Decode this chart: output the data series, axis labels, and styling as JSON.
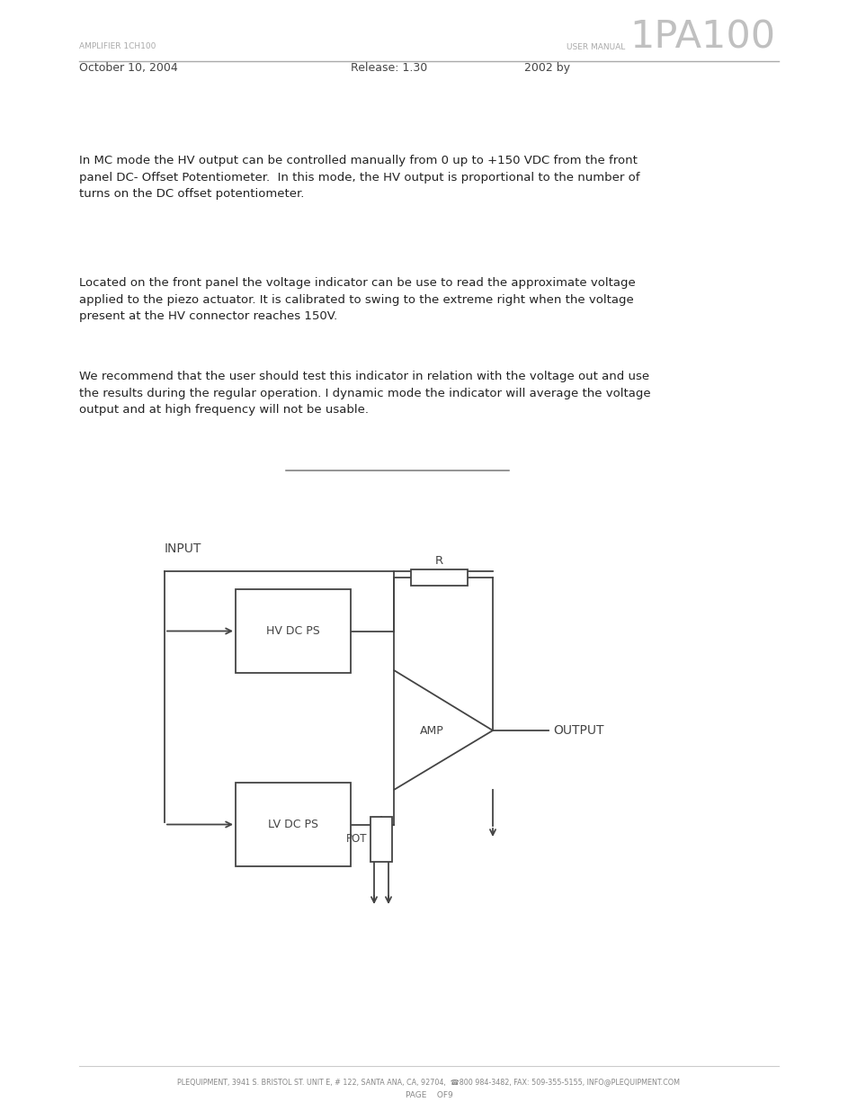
{
  "bg_color": "#ffffff",
  "header_left": "AMPLIFIER 1CH100",
  "header_right_pre": "USER MANUAL",
  "header_right_large": "1PA100",
  "header_date": "October 10, 2004",
  "header_release": "Release: 1.30",
  "header_year": "2002 by",
  "para1": "In MC mode the HV output can be controlled manually from 0 up to +150 VDC from the front\npanel DC- Offset Potentiometer.  In this mode, the HV output is proportional to the number of\nturns on the DC offset potentiometer.",
  "para2": "Located on the front panel the voltage indicator can be use to read the approximate voltage\napplied to the piezo actuator. It is calibrated to swing to the extreme right when the voltage\npresent at the HV connector reaches 150V.",
  "para3": "We recommend that the user should test this indicator in relation with the voltage out and use\nthe results during the regular operation. I dynamic mode the indicator will average the voltage\noutput and at high frequency will not be usable.",
  "footer1": "PLEQUIPMENT, 3941 S. BRISTOL ST. UNIT E, # 122, SANTA ANA, CA, 92704,  ☎800 984-3482, FAX: 509-355-5155, INFO@PLEQUIPMENT.COM",
  "footer2": "PAGE    OF9",
  "gray": "#aaaaaa",
  "darkgray": "#555555",
  "tc": "#222222",
  "diag_color": "#444444",
  "lw": 1.3
}
